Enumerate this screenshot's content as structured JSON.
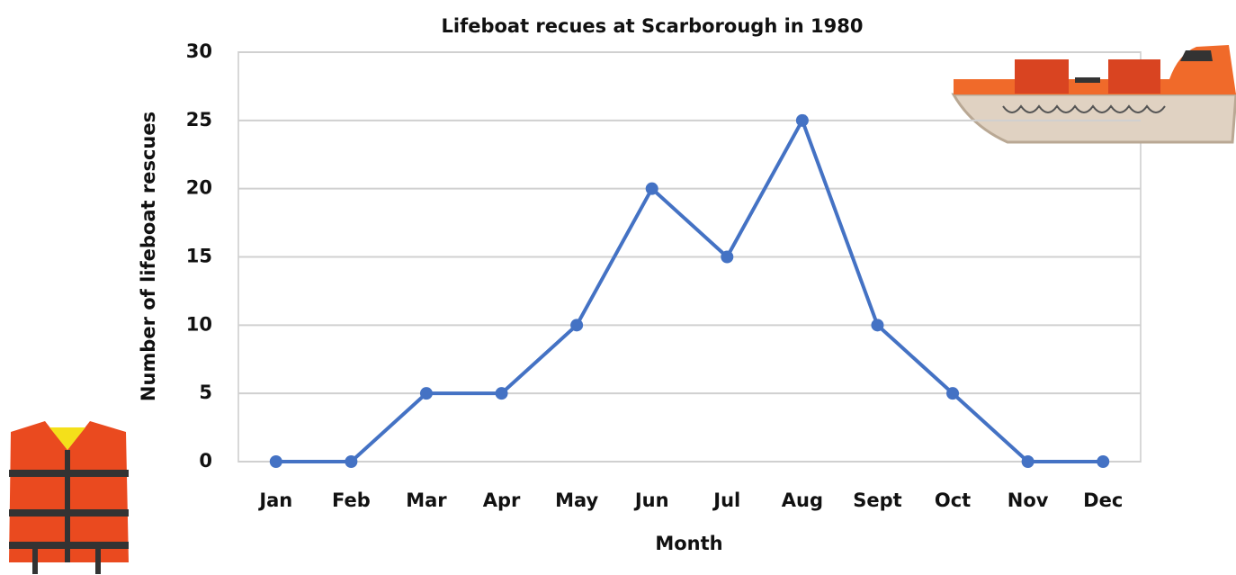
{
  "chart_data": {
    "type": "line",
    "title": "Lifeboat recues at Scarborough in 1980",
    "x_label": "Month",
    "y_label": "Number of lifeboat rescues",
    "categories": [
      "Jan",
      "Feb",
      "Mar",
      "Apr",
      "May",
      "Jun",
      "Jul",
      "Aug",
      "Sept",
      "Oct",
      "Nov",
      "Dec"
    ],
    "values": [
      0,
      0,
      5,
      5,
      10,
      20,
      15,
      25,
      10,
      5,
      0,
      0
    ],
    "color": "#4472c4",
    "ylim": [
      0,
      30
    ],
    "yticks": [
      0,
      5,
      10,
      15,
      20,
      25,
      30
    ],
    "grid": true
  }
}
